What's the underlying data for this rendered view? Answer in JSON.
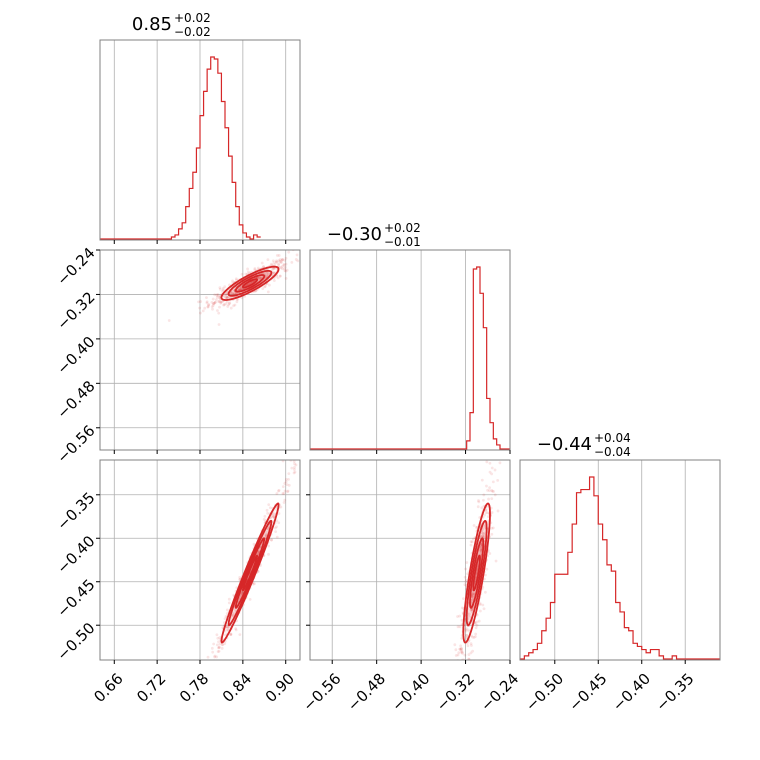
{
  "chart_data": {
    "type": "corner",
    "grid": true,
    "color": "#d62728",
    "parameters": [
      {
        "title": {
          "median": "0.85",
          "plus": "+0.02",
          "minus": "−0.02"
        },
        "range": [
          0.64,
          0.92
        ],
        "ticks": [
          {
            "v": 0.66,
            "label": "0.66"
          },
          {
            "v": 0.72,
            "label": "0.72"
          },
          {
            "v": 0.78,
            "label": "0.78"
          },
          {
            "v": 0.84,
            "label": "0.84"
          },
          {
            "v": 0.9,
            "label": "0.90"
          }
        ],
        "hist": {
          "edges_start": 0.64,
          "bin_width": 0.005,
          "counts": [
            0,
            0,
            0,
            0,
            0,
            0,
            0,
            0,
            0,
            0,
            0,
            0,
            0,
            0,
            0,
            0,
            0,
            0,
            0,
            0,
            1,
            2,
            5,
            8,
            16,
            25,
            33,
            45,
            61,
            73,
            84,
            90,
            89,
            82,
            68,
            55,
            41,
            28,
            16,
            7,
            3,
            1,
            0,
            2,
            1
          ]
        }
      },
      {
        "title": {
          "median": "−0.30",
          "plus": "+0.02",
          "minus": "−0.01"
        },
        "range": [
          -0.6,
          -0.24
        ],
        "ticks": [
          {
            "v": -0.56,
            "label": "−0.56"
          },
          {
            "v": -0.48,
            "label": "−0.48"
          },
          {
            "v": -0.4,
            "label": "−0.40"
          },
          {
            "v": -0.32,
            "label": "−0.32"
          },
          {
            "v": -0.24,
            "label": "−0.24"
          }
        ],
        "hist": {
          "edges_start": -0.6,
          "bin_width": 0.0072,
          "counts": [
            0,
            0,
            0,
            0,
            0,
            0,
            0,
            0,
            0,
            0,
            0,
            0,
            0,
            0,
            0,
            0,
            0,
            0,
            0,
            0,
            0,
            0,
            0,
            0,
            0,
            0,
            0,
            0,
            0,
            0,
            0,
            0,
            0,
            0,
            0,
            0,
            0,
            0,
            0,
            0,
            0,
            0,
            0,
            0,
            0,
            0,
            0,
            0,
            0,
            0
          ]
        },
        "hist_override": [
          {
            "x0": -0.6,
            "x1": -0.318,
            "c": 0
          },
          {
            "x0": -0.318,
            "x1": -0.312,
            "c": 4
          },
          {
            "x0": -0.312,
            "x1": -0.306,
            "c": 18
          },
          {
            "x0": -0.306,
            "x1": -0.3,
            "c": 89
          },
          {
            "x0": -0.3,
            "x1": -0.294,
            "c": 90
          },
          {
            "x0": -0.294,
            "x1": -0.288,
            "c": 77
          },
          {
            "x0": -0.288,
            "x1": -0.282,
            "c": 60
          },
          {
            "x0": -0.282,
            "x1": -0.276,
            "c": 25
          },
          {
            "x0": -0.276,
            "x1": -0.27,
            "c": 13
          },
          {
            "x0": -0.27,
            "x1": -0.264,
            "c": 5
          },
          {
            "x0": -0.264,
            "x1": -0.258,
            "c": 2
          },
          {
            "x0": -0.258,
            "x1": -0.24,
            "c": 0
          }
        ]
      },
      {
        "title": {
          "median": "−0.44",
          "plus": "+0.04",
          "minus": "−0.04"
        },
        "range": [
          -0.54,
          -0.31
        ],
        "ticks": [
          {
            "v": -0.5,
            "label": "−0.50"
          },
          {
            "v": -0.45,
            "label": "−0.45"
          },
          {
            "v": -0.4,
            "label": "−0.40"
          },
          {
            "v": -0.35,
            "label": "−0.35"
          }
        ],
        "hist": {
          "edges_start": -0.54,
          "bin_width": 0.005,
          "counts": [
            0,
            1,
            2,
            3,
            5,
            9,
            13,
            18,
            27,
            27,
            27,
            34,
            43,
            53,
            54,
            54,
            58,
            52,
            43,
            38,
            30,
            28,
            18,
            15,
            10,
            9,
            5,
            4,
            3,
            2,
            3,
            3,
            1,
            0,
            0,
            1,
            0,
            0,
            0,
            0,
            0,
            0,
            0,
            0,
            0,
            0
          ]
        }
      }
    ],
    "scatter": [
      {
        "row": 1,
        "col": 0,
        "center": [
          0.85,
          -0.3
        ],
        "sd": [
          0.02,
          0.015
        ],
        "rho": 0.85
      },
      {
        "row": 2,
        "col": 0,
        "center": [
          0.85,
          -0.44
        ],
        "sd": [
          0.02,
          0.04
        ],
        "rho": 0.98
      },
      {
        "row": 2,
        "col": 1,
        "center": [
          -0.3,
          -0.44
        ],
        "sd": [
          0.012,
          0.04
        ],
        "rho": 0.85
      }
    ]
  }
}
